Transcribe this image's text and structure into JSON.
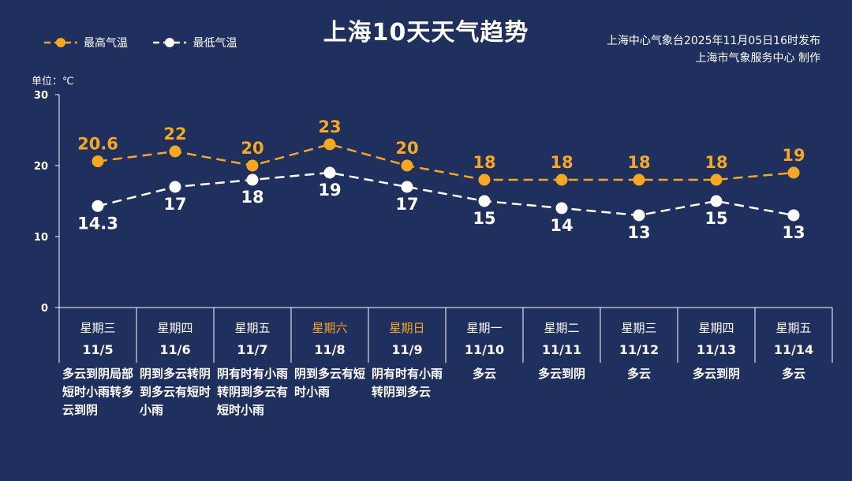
{
  "title": "上海10天天气趋势",
  "legend": {
    "high": "最高气温",
    "low": "最低气温"
  },
  "publisher": {
    "line1": "上海中心气象台2025年11月05日16时发布",
    "line2": "上海市气象服务中心 制作"
  },
  "unit_label": "单位：℃",
  "colors": {
    "background": "#1f2f5e",
    "high": "#f6a91f",
    "low": "#ffffff"
  },
  "chart_data": {
    "type": "line",
    "categories": [
      "11/5",
      "11/6",
      "11/7",
      "11/8",
      "11/9",
      "11/10",
      "11/11",
      "11/12",
      "11/13",
      "11/14"
    ],
    "weekdays": [
      "星期三",
      "星期四",
      "星期五",
      "星期六",
      "星期日",
      "星期一",
      "星期二",
      "星期三",
      "星期四",
      "星期五"
    ],
    "weekend_index": [
      3,
      4
    ],
    "series": [
      {
        "name": "最高气温",
        "values": [
          20.6,
          22,
          20,
          23,
          20,
          18,
          18,
          18,
          18,
          19
        ]
      },
      {
        "name": "最低气温",
        "values": [
          14.3,
          17,
          18,
          19,
          17,
          15,
          14,
          13,
          15,
          13
        ]
      }
    ],
    "high_labels": [
      "20.6",
      "22",
      "20",
      "23",
      "20",
      "18",
      "18",
      "18",
      "18",
      "19"
    ],
    "low_labels": [
      "14.3",
      "17",
      "18",
      "19",
      "17",
      "15",
      "14",
      "13",
      "15",
      "13"
    ],
    "yticks": [
      "0",
      "10",
      "20",
      "30"
    ],
    "ylim": [
      0,
      30
    ],
    "grid": false,
    "legend_position": "top-left",
    "weather": [
      "多云到阴局部短时小雨转多云到阴",
      "阴到多云转阴到多云有短时小雨",
      "阴有时有小雨转阴到多云有短时小雨",
      "阴到多云有短时小雨",
      "阴有时有小雨转阴到多云",
      "多云",
      "多云到阴",
      "多云",
      "多云到阴",
      "多云"
    ]
  }
}
